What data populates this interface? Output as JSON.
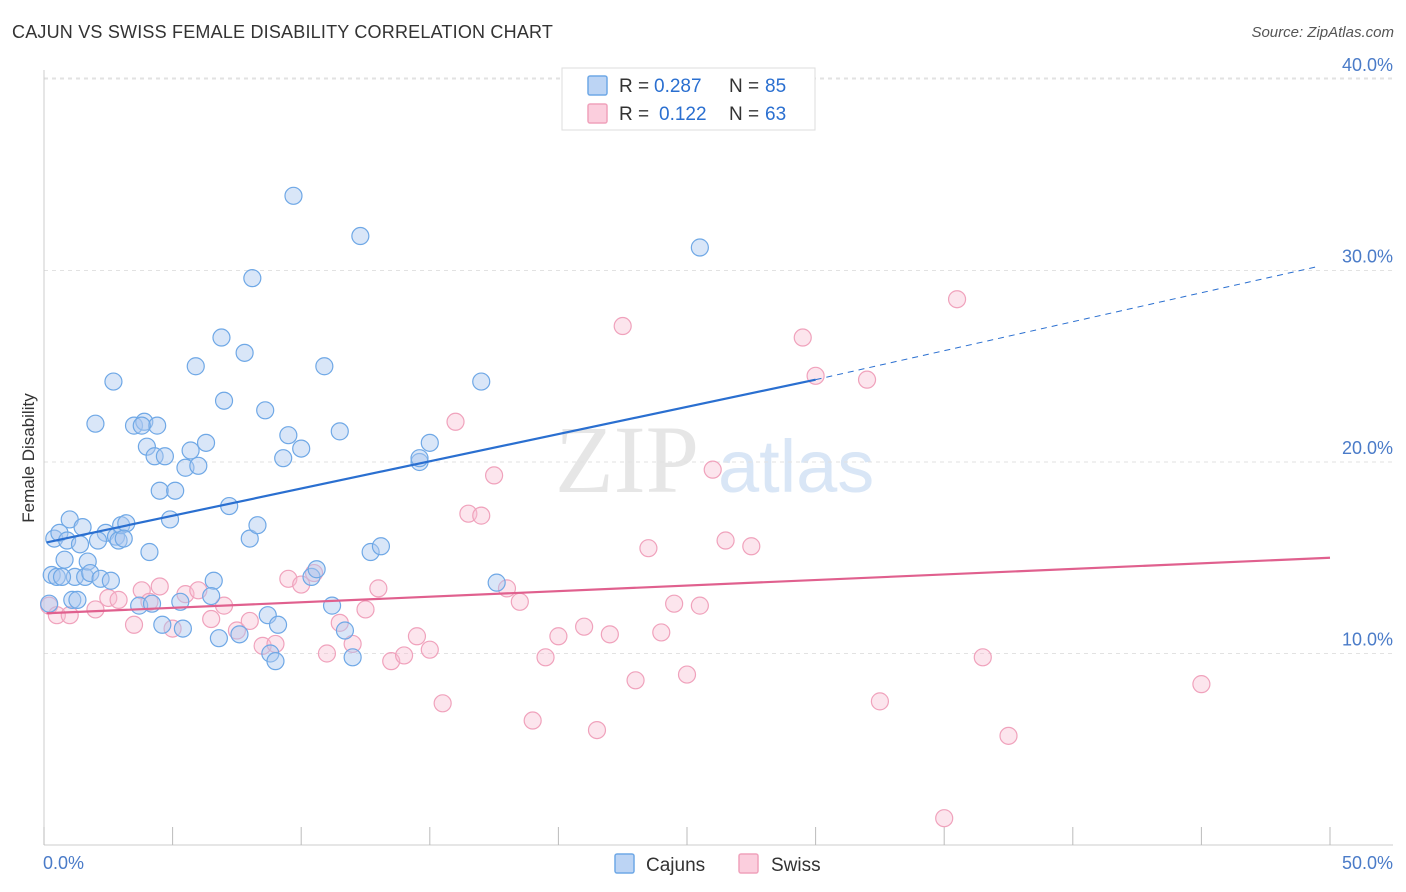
{
  "title": "CAJUN VS SWISS FEMALE DISABILITY CORRELATION CHART",
  "source": "Source: ZipAtlas.com",
  "watermark": {
    "zip": "ZIP",
    "atlas": "atlas"
  },
  "chart_data": {
    "type": "scatter",
    "xlabel": "",
    "ylabel": "Female Disability",
    "xlim": [
      0,
      50
    ],
    "ylim": [
      0,
      41.5
    ],
    "x_tick_labels": {
      "min": "0.0%",
      "max": "50.0%"
    },
    "y_ticks": [
      10,
      20,
      30,
      40
    ],
    "y_tick_labels": [
      "10.0%",
      "20.0%",
      "30.0%",
      "40.0%"
    ],
    "legend_top": [
      {
        "r_label": "R =",
        "r_value": "0.287",
        "n_label": "N =",
        "n_value": "85"
      },
      {
        "r_label": "R =",
        "r_value": "0.122",
        "n_label": "N =",
        "n_value": "63"
      }
    ],
    "series": [
      {
        "name": "Cajuns",
        "color": "#6fa8e6",
        "line_color": "#2a6fd0",
        "trend": {
          "x0": 0.1,
          "y0": 15.8,
          "x1": 30,
          "y1": 24.3,
          "dash_x1": 49.5,
          "dash_y1": 30.2
        },
        "points": [
          [
            0.2,
            12.6
          ],
          [
            0.3,
            14.1
          ],
          [
            0.4,
            16.0
          ],
          [
            0.5,
            14.0
          ],
          [
            0.6,
            16.3
          ],
          [
            0.8,
            14.9
          ],
          [
            0.9,
            15.9
          ],
          [
            1.0,
            17.0
          ],
          [
            1.1,
            12.8
          ],
          [
            1.2,
            14.0
          ],
          [
            1.4,
            15.7
          ],
          [
            1.5,
            16.6
          ],
          [
            1.6,
            14.0
          ],
          [
            1.7,
            14.8
          ],
          [
            1.8,
            14.2
          ],
          [
            2.0,
            22.0
          ],
          [
            2.2,
            13.9
          ],
          [
            2.4,
            16.3
          ],
          [
            2.6,
            13.8
          ],
          [
            2.7,
            24.2
          ],
          [
            2.8,
            16.1
          ],
          [
            2.9,
            15.9
          ],
          [
            3.0,
            16.7
          ],
          [
            3.2,
            16.8
          ],
          [
            3.5,
            21.9
          ],
          [
            3.7,
            12.5
          ],
          [
            3.9,
            22.1
          ],
          [
            4.0,
            20.8
          ],
          [
            4.1,
            15.3
          ],
          [
            4.3,
            20.3
          ],
          [
            4.4,
            21.9
          ],
          [
            4.5,
            18.5
          ],
          [
            4.7,
            20.3
          ],
          [
            4.9,
            17.0
          ],
          [
            5.1,
            18.5
          ],
          [
            5.3,
            12.7
          ],
          [
            5.5,
            19.7
          ],
          [
            5.7,
            20.6
          ],
          [
            5.9,
            25.0
          ],
          [
            6.0,
            19.8
          ],
          [
            6.3,
            21.0
          ],
          [
            6.6,
            13.8
          ],
          [
            6.9,
            26.5
          ],
          [
            7.0,
            23.2
          ],
          [
            7.2,
            17.7
          ],
          [
            7.6,
            11.0
          ],
          [
            7.8,
            25.7
          ],
          [
            8.0,
            16.0
          ],
          [
            8.1,
            29.6
          ],
          [
            8.3,
            16.7
          ],
          [
            8.6,
            22.7
          ],
          [
            8.7,
            12.0
          ],
          [
            9.1,
            11.5
          ],
          [
            9.3,
            20.2
          ],
          [
            9.5,
            21.4
          ],
          [
            9.7,
            33.9
          ],
          [
            10.0,
            20.7
          ],
          [
            10.4,
            14.0
          ],
          [
            10.6,
            14.4
          ],
          [
            10.9,
            25.0
          ],
          [
            11.2,
            12.5
          ],
          [
            11.5,
            21.6
          ],
          [
            11.7,
            11.2
          ],
          [
            12.0,
            9.8
          ],
          [
            12.3,
            31.8
          ],
          [
            12.7,
            15.3
          ],
          [
            13.1,
            15.6
          ],
          [
            3.8,
            21.9
          ],
          [
            14.6,
            20.0
          ],
          [
            15.0,
            21.0
          ],
          [
            17.0,
            24.2
          ],
          [
            17.6,
            13.7
          ],
          [
            25.5,
            31.2
          ],
          [
            4.6,
            11.5
          ],
          [
            5.4,
            11.3
          ],
          [
            6.8,
            10.8
          ],
          [
            8.8,
            10.0
          ],
          [
            9.0,
            9.6
          ],
          [
            0.7,
            14.0
          ],
          [
            1.3,
            12.8
          ],
          [
            2.1,
            15.9
          ],
          [
            3.1,
            16.0
          ],
          [
            4.2,
            12.6
          ],
          [
            14.6,
            20.2
          ],
          [
            6.5,
            13.0
          ]
        ]
      },
      {
        "name": "Swiss",
        "color": "#f0a2bc",
        "line_color": "#e0608e",
        "trend": {
          "x0": 0.1,
          "y0": 12.1,
          "x1": 50,
          "y1": 15.0
        },
        "points": [
          [
            0.2,
            12.5
          ],
          [
            0.5,
            12.0
          ],
          [
            1.0,
            12.0
          ],
          [
            2.0,
            12.3
          ],
          [
            2.5,
            12.9
          ],
          [
            2.9,
            12.8
          ],
          [
            3.5,
            11.5
          ],
          [
            3.8,
            13.3
          ],
          [
            4.1,
            12.7
          ],
          [
            4.5,
            13.5
          ],
          [
            5.0,
            11.3
          ],
          [
            5.5,
            13.1
          ],
          [
            6.0,
            13.3
          ],
          [
            6.5,
            11.8
          ],
          [
            7.0,
            12.5
          ],
          [
            7.5,
            11.2
          ],
          [
            8.0,
            11.7
          ],
          [
            8.5,
            10.4
          ],
          [
            9.0,
            10.5
          ],
          [
            9.5,
            13.9
          ],
          [
            10.0,
            13.6
          ],
          [
            10.5,
            14.2
          ],
          [
            11.0,
            10.0
          ],
          [
            11.5,
            11.6
          ],
          [
            12.0,
            10.5
          ],
          [
            12.5,
            12.3
          ],
          [
            13.0,
            13.4
          ],
          [
            13.5,
            9.6
          ],
          [
            14.0,
            9.9
          ],
          [
            14.5,
            10.9
          ],
          [
            15.0,
            10.2
          ],
          [
            15.5,
            7.4
          ],
          [
            16.0,
            22.1
          ],
          [
            16.5,
            17.3
          ],
          [
            17.0,
            17.2
          ],
          [
            17.5,
            19.3
          ],
          [
            18.0,
            13.4
          ],
          [
            18.5,
            12.7
          ],
          [
            19.0,
            6.5
          ],
          [
            19.5,
            9.8
          ],
          [
            20.0,
            10.9
          ],
          [
            21.0,
            11.4
          ],
          [
            21.5,
            6.0
          ],
          [
            22.0,
            11.0
          ],
          [
            22.5,
            27.1
          ],
          [
            23.0,
            8.6
          ],
          [
            23.5,
            15.5
          ],
          [
            24.0,
            11.1
          ],
          [
            24.5,
            12.6
          ],
          [
            25.0,
            8.9
          ],
          [
            25.5,
            12.5
          ],
          [
            26.0,
            19.6
          ],
          [
            26.5,
            15.9
          ],
          [
            27.5,
            15.6
          ],
          [
            29.5,
            26.5
          ],
          [
            30.0,
            24.5
          ],
          [
            32.0,
            24.3
          ],
          [
            32.5,
            7.5
          ],
          [
            35.0,
            1.4
          ],
          [
            35.5,
            28.5
          ],
          [
            36.5,
            9.8
          ],
          [
            37.5,
            5.7
          ],
          [
            45.0,
            8.4
          ]
        ]
      }
    ]
  }
}
